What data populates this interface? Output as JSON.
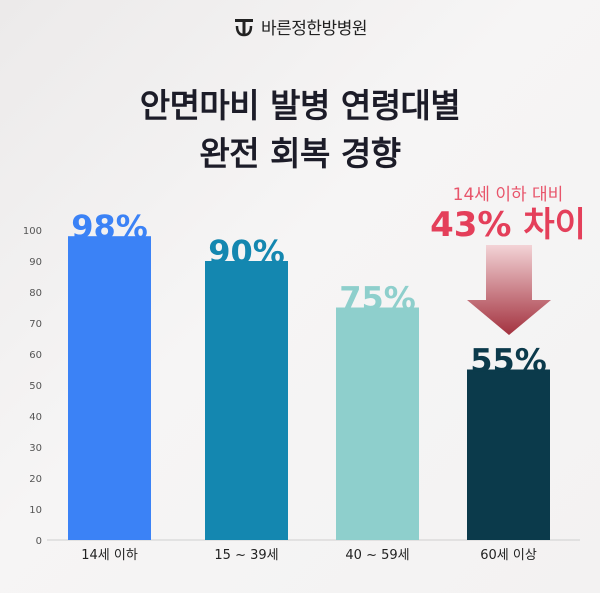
{
  "brand": {
    "name": "바른정한방병원"
  },
  "title_line1": "안면마비 발병 연령대별",
  "title_line2": "완전 회복 경향",
  "callout": {
    "sub": "14세 이하 대비",
    "main": "43% 차이"
  },
  "colors": {
    "bar1": "#3b82f6",
    "bar2": "#1487b0",
    "bar3": "#8ecfcc",
    "bar4": "#0b3a4b",
    "callout": "#e43f5a",
    "arrow_top": "#f3d3d6",
    "arrow_bottom": "#a3323f"
  },
  "chart_data": {
    "type": "bar",
    "categories": [
      "14세 이하",
      "15 ~ 39세",
      "40 ~ 59세",
      "60세 이상"
    ],
    "values": [
      98,
      90,
      75,
      55
    ],
    "value_labels": [
      "98%",
      "90%",
      "75%",
      "55%"
    ],
    "ylim": [
      0,
      100
    ],
    "yticks": [
      0,
      10,
      20,
      30,
      40,
      50,
      60,
      70,
      80,
      90,
      100
    ],
    "grid": false,
    "legend": "none"
  }
}
